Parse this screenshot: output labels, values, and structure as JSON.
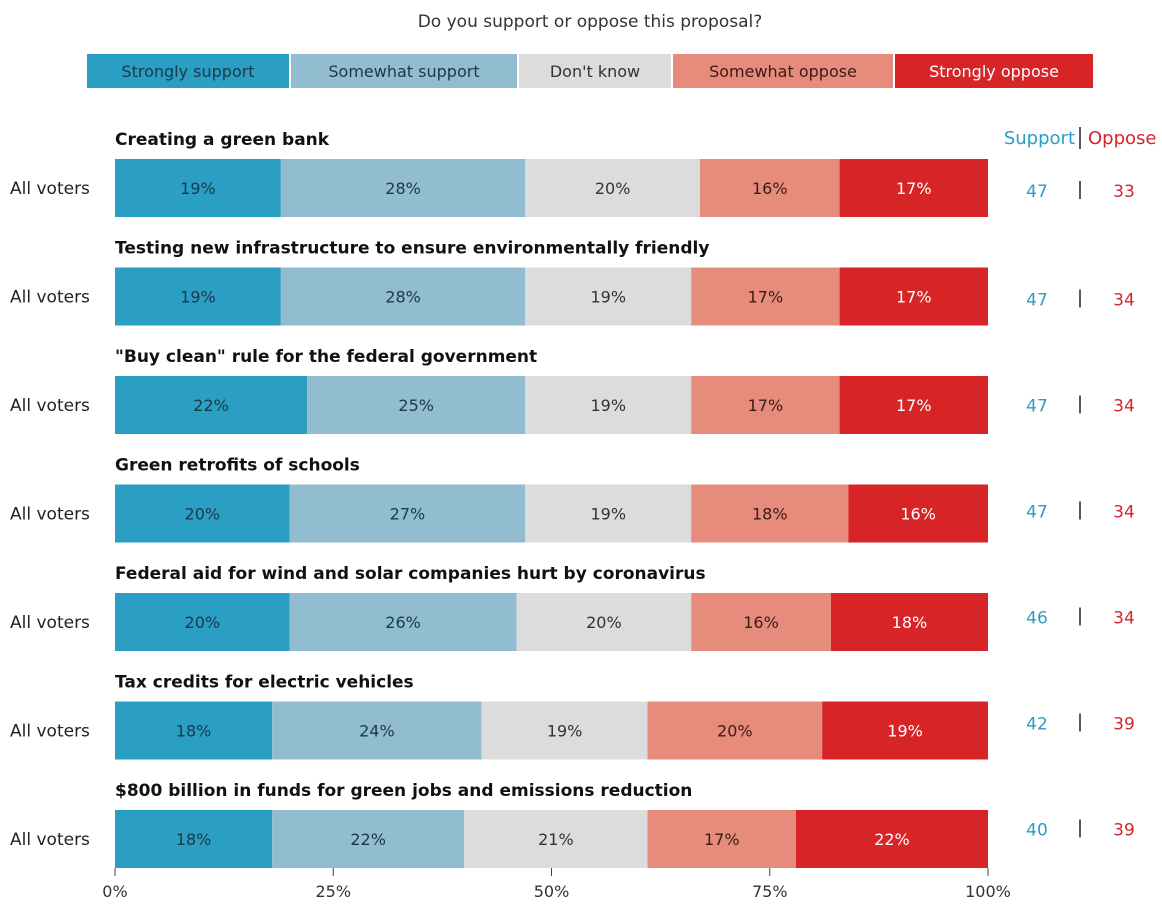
{
  "chart_data": {
    "type": "bar",
    "title": "Do you support or oppose this proposal?",
    "orientation": "horizontal-stacked",
    "categories": [
      "Creating a green bank",
      "Testing new infrastructure to ensure environmentally friendly",
      "\"Buy clean\" rule for the federal government",
      "Green retrofits of schools",
      "Federal aid for wind and solar companies hurt by coronavirus",
      "Tax credits for electric vehicles",
      "$800 billion in funds for green jobs and emissions reduction"
    ],
    "row_label": "All voters",
    "series": [
      {
        "name": "Strongly support",
        "color": "#2a9ec3",
        "text_color": "#1a3a4a",
        "values": [
          19,
          19,
          22,
          20,
          20,
          18,
          18
        ]
      },
      {
        "name": "Somewhat support",
        "color": "#92bcd0",
        "text_color": "#1a3a4a",
        "values": [
          28,
          28,
          25,
          27,
          26,
          24,
          22
        ]
      },
      {
        "name": "Don't know",
        "color": "#dcdcdc",
        "text_color": "#333333",
        "values": [
          20,
          19,
          19,
          19,
          20,
          19,
          21
        ]
      },
      {
        "name": "Somewhat oppose",
        "color": "#e78c7c",
        "text_color": "#3a1a16",
        "values": [
          16,
          17,
          17,
          18,
          16,
          20,
          17
        ]
      },
      {
        "name": "Strongly oppose",
        "color": "#d62427",
        "text_color": "#ffffff",
        "values": [
          17,
          17,
          17,
          16,
          18,
          19,
          22
        ]
      }
    ],
    "summary": {
      "support_label": "Support",
      "oppose_label": "Oppose",
      "support_color": "#2a9ec3",
      "oppose_color": "#d62427",
      "support": [
        47,
        47,
        47,
        47,
        46,
        42,
        40
      ],
      "oppose": [
        33,
        34,
        34,
        34,
        34,
        39,
        39
      ]
    },
    "xlim": [
      0,
      100
    ],
    "xticks": [
      "0%",
      "25%",
      "50%",
      "75%",
      "100%"
    ],
    "legend_position": "top",
    "grid": false
  }
}
